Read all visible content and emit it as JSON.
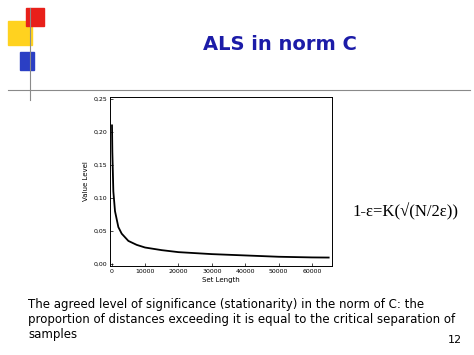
{
  "chart_data": {
    "type": "line",
    "title": "ALS in norm C",
    "x_label": "Set Length",
    "y_label": "Value Level",
    "x": [
      100,
      200,
      500,
      1000,
      2000,
      3000,
      5000,
      7500,
      10000,
      15000,
      20000,
      30000,
      40000,
      50000,
      60000,
      65000
    ],
    "values": [
      0.21,
      0.17,
      0.11,
      0.08,
      0.056,
      0.046,
      0.035,
      0.029,
      0.025,
      0.021,
      0.018,
      0.015,
      0.013,
      0.011,
      0.01,
      0.0098
    ],
    "color": "#000000",
    "xlim": [
      -500,
      66000
    ],
    "xticks": [
      0,
      10000,
      20000,
      30000,
      40000,
      50000,
      60000
    ],
    "ylim": [
      -0.003,
      0.253
    ],
    "yticks": [
      {
        "value": 0.0,
        "label": "0,00"
      },
      {
        "value": 0.05,
        "label": "0,05"
      },
      {
        "value": 0.1,
        "label": "0,10"
      },
      {
        "value": 0.15,
        "label": "0,15"
      },
      {
        "value": 0.2,
        "label": "0,20"
      },
      {
        "value": 0.25,
        "label": "0,25"
      }
    ],
    "grid": false,
    "annotations": [
      "1-ε=K(√(N/2ε))",
      "The agreed level of significance (stationarity) in the norm of C: the proportion of distances exceeding it is equal to the critical separation of samples",
      "12"
    ]
  }
}
